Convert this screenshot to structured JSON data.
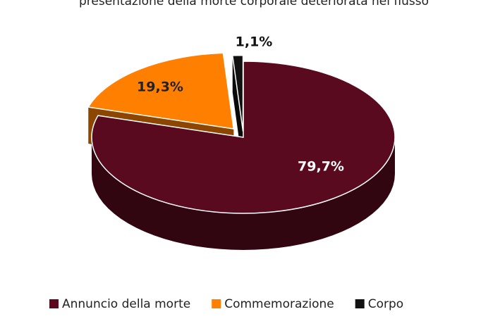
{
  "chart_data": {
    "type": "pie3d",
    "title": "presentazione della morte corporale deteriorata nel flusso",
    "categories": [
      "Annuncio della morte",
      "Commemorazione",
      "Corpo"
    ],
    "values": [
      79.7,
      19.3,
      1.1
    ],
    "value_labels": [
      "79,7%",
      "19,3%",
      "1,1%"
    ],
    "colors": [
      "#5a0a1e",
      "#ff7f00",
      "#111111"
    ],
    "legend": "bottom"
  }
}
